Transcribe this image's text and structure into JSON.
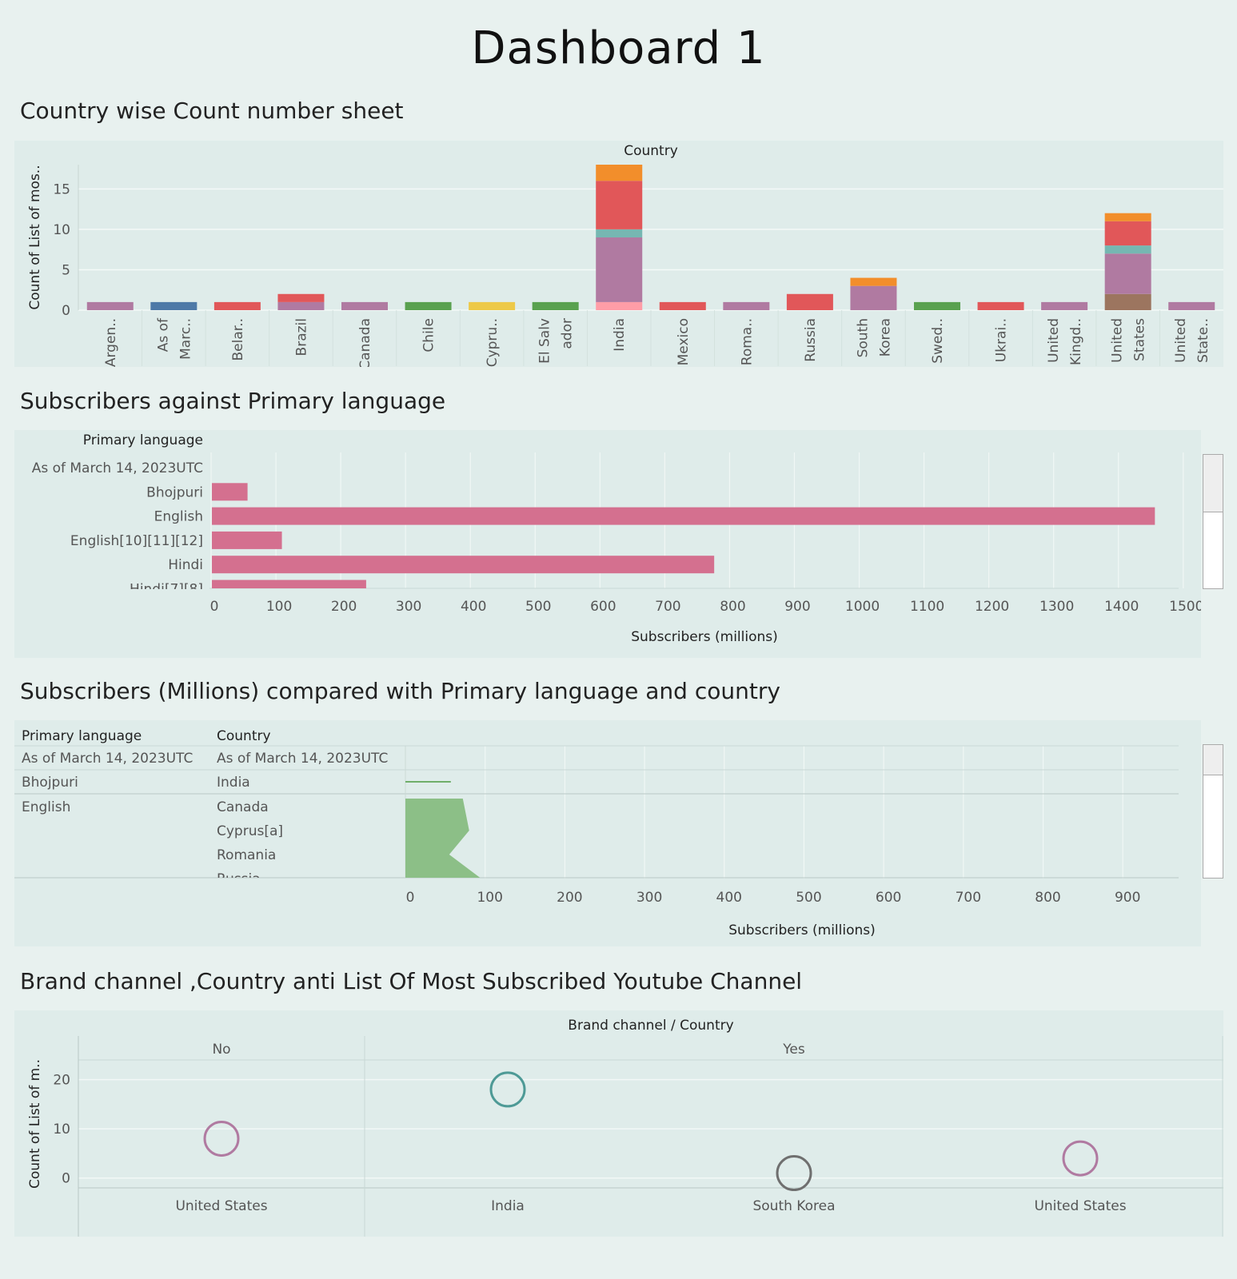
{
  "dashboard_title": "Dashboard 1",
  "sheets": [
    "Country wise Count number sheet",
    "Subscribers against Primary language",
    "Subscribers (Millions) compared with Primary language and country",
    "Brand channel ,Country anti List Of Most Subscribed Youtube Channel"
  ],
  "colors": {
    "background": "#e8f1ef",
    "panel": "#dfecea",
    "purple": "#b07aa1",
    "blue": "#4e79a7",
    "red": "#e15759",
    "green": "#59a14f",
    "yellow": "#edc948",
    "orange": "#f28e2b",
    "teal": "#76b7b2",
    "pink": "#ff9da7",
    "brown": "#9c755f",
    "bar_pink": "#d4708f",
    "area_green": "#8cbf87",
    "circle_teal": "#4e9a96",
    "circle_gray": "#6f6f6f"
  },
  "chart_data": [
    {
      "type": "bar",
      "stacked": true,
      "title": "Country wise Count number sheet",
      "column_header": "Country",
      "ylabel": "Count of List of mos..",
      "ylim": [
        0,
        18
      ],
      "yticks": [
        0,
        5,
        10,
        15
      ],
      "categories": [
        "Argen..",
        "As of Marc..",
        "Belar..",
        "Brazil",
        "Canada",
        "Chile",
        "Cypru..",
        "El Salvador",
        "India",
        "Mexico",
        "Roma..",
        "Russia",
        "South Korea",
        "Swed..",
        "Ukrai..",
        "United Kingd..",
        "United States",
        "United State.."
      ],
      "category_label_lines": [
        [
          "Argen.."
        ],
        [
          "As of",
          "Marc.."
        ],
        [
          "Belar.."
        ],
        [
          "Brazil"
        ],
        [
          "Canada"
        ],
        [
          "Chile"
        ],
        [
          "Cypru.."
        ],
        [
          "El Salv",
          "ador"
        ],
        [
          "India"
        ],
        [
          "Mexico"
        ],
        [
          "Roma.."
        ],
        [
          "Russia"
        ],
        [
          "South",
          "Korea"
        ],
        [
          "Swed.."
        ],
        [
          "Ukrai.."
        ],
        [
          "United",
          "Kingd.."
        ],
        [
          "United",
          "States"
        ],
        [
          "United",
          "State.."
        ]
      ],
      "stacks": [
        [
          {
            "value": 1,
            "color": "purple"
          }
        ],
        [
          {
            "value": 1,
            "color": "blue"
          }
        ],
        [
          {
            "value": 1,
            "color": "red"
          }
        ],
        [
          {
            "value": 1,
            "color": "purple"
          },
          {
            "value": 1,
            "color": "red"
          }
        ],
        [
          {
            "value": 1,
            "color": "purple"
          }
        ],
        [
          {
            "value": 1,
            "color": "green"
          }
        ],
        [
          {
            "value": 1,
            "color": "yellow"
          }
        ],
        [
          {
            "value": 1,
            "color": "green"
          }
        ],
        [
          {
            "value": 1,
            "color": "pink"
          },
          {
            "value": 8,
            "color": "purple"
          },
          {
            "value": 1,
            "color": "teal"
          },
          {
            "value": 6,
            "color": "red"
          },
          {
            "value": 2,
            "color": "orange"
          }
        ],
        [
          {
            "value": 1,
            "color": "red"
          }
        ],
        [
          {
            "value": 1,
            "color": "purple"
          }
        ],
        [
          {
            "value": 2,
            "color": "red"
          }
        ],
        [
          {
            "value": 3,
            "color": "purple"
          },
          {
            "value": 1,
            "color": "orange"
          }
        ],
        [
          {
            "value": 1,
            "color": "green"
          }
        ],
        [
          {
            "value": 1,
            "color": "red"
          }
        ],
        [
          {
            "value": 1,
            "color": "purple"
          }
        ],
        [
          {
            "value": 2,
            "color": "brown"
          },
          {
            "value": 5,
            "color": "purple"
          },
          {
            "value": 1,
            "color": "teal"
          },
          {
            "value": 3,
            "color": "red"
          },
          {
            "value": 1,
            "color": "orange"
          }
        ],
        [
          {
            "value": 1,
            "color": "purple"
          }
        ]
      ]
    },
    {
      "type": "bar",
      "orientation": "horizontal",
      "title": "Subscribers against Primary language",
      "row_header": "Primary language",
      "xlabel": "Subscribers (millions)",
      "xlim": [
        0,
        1520
      ],
      "xticks": [
        0,
        100,
        200,
        300,
        400,
        500,
        600,
        700,
        800,
        900,
        1000,
        1100,
        1200,
        1300,
        1400,
        1500
      ],
      "categories": [
        "As of March 14, 2023UTC",
        "Bhojpuri",
        "English",
        "English[10][11][12]",
        "Hindi",
        "Hindi[7][8]"
      ],
      "values": [
        0,
        55,
        1455,
        108,
        775,
        238
      ]
    },
    {
      "type": "area",
      "title": "Subscribers (Millions) compared with Primary language and country",
      "headers": [
        "Primary language",
        "Country"
      ],
      "rows": [
        {
          "language": "As of March 14, 2023UTC",
          "country": "As of March 14, 2023UTC",
          "value": null
        },
        {
          "language": "Bhojpuri",
          "country": "India",
          "value": 57
        },
        {
          "language": "English",
          "country": "Canada",
          "value": 72
        },
        {
          "language": "",
          "country": "Cyprus[a]",
          "value": 80
        },
        {
          "language": "",
          "country": "Romania",
          "value": 55
        },
        {
          "language": "",
          "country": "Russia",
          "value": 95
        }
      ],
      "xlabel": "Subscribers (millions)",
      "xlim": [
        0,
        970
      ],
      "xticks": [
        0,
        100,
        200,
        300,
        400,
        500,
        600,
        700,
        800,
        900
      ]
    },
    {
      "type": "scatter",
      "title": "Brand channel ,Country anti List Of Most Subscribed Youtube Channel",
      "column_header": "Brand channel  /  Country",
      "ylabel": "Count of List of m..",
      "ylim": [
        -2,
        24
      ],
      "yticks": [
        0,
        10,
        20
      ],
      "groups": [
        "No",
        "Yes"
      ],
      "points": [
        {
          "group": "No",
          "country": "United States",
          "value": 8,
          "color": "purple"
        },
        {
          "group": "Yes",
          "country": "India",
          "value": 18,
          "color": "circle_teal"
        },
        {
          "group": "Yes",
          "country": "South Korea",
          "value": 1,
          "color": "circle_gray"
        },
        {
          "group": "Yes",
          "country": "United States",
          "value": 4,
          "color": "purple"
        }
      ]
    }
  ]
}
